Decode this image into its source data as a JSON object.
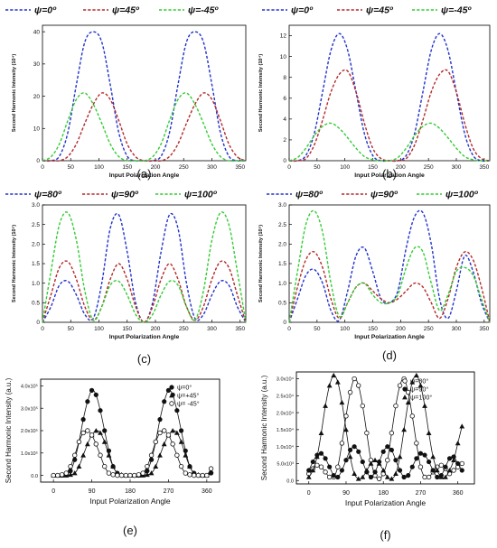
{
  "chart_data": [
    {
      "panel": "(a)",
      "type": "line",
      "legend": [
        "ψ=0º",
        "ψ=45º",
        "ψ=-45º"
      ],
      "xlabel": "Input Polarization Angle",
      "ylabel": "Second Harmonic Intensity (10⁴)",
      "xlim": [
        0,
        360
      ],
      "ylim": [
        0,
        42
      ],
      "xticks": [
        "0",
        "50",
        "100",
        "150",
        "200",
        "250",
        "300",
        "350"
      ],
      "yticks": [
        "0",
        "10",
        "20",
        "30",
        "40"
      ],
      "x": [
        0,
        15,
        30,
        45,
        60,
        75,
        90,
        105,
        120,
        135,
        150,
        165,
        180,
        195,
        210,
        225,
        240,
        255,
        270,
        285,
        300,
        315,
        330,
        345,
        360
      ],
      "series": [
        {
          "name": "ψ=0º",
          "color": "#2233cc",
          "values": [
            0,
            0,
            1.4,
            8.8,
            23.6,
            36.8,
            40,
            36.8,
            23.6,
            8.8,
            1.4,
            0,
            0,
            0,
            1.4,
            8.8,
            23.6,
            36.8,
            40,
            36.8,
            23.6,
            8.8,
            1.4,
            0,
            0
          ]
        },
        {
          "name": "ψ=45º",
          "color": "#b22a2a",
          "values": [
            0,
            0,
            0,
            1.3,
            5.2,
            11.6,
            17.5,
            21,
            19,
            12.5,
            5.2,
            1.2,
            0,
            0,
            0,
            1.3,
            5.2,
            11.6,
            17.5,
            21,
            19,
            12.5,
            5.2,
            1.2,
            0
          ]
        },
        {
          "name": "ψ=-45º",
          "color": "#33cc33",
          "values": [
            0,
            1.2,
            5.2,
            12.5,
            19,
            21,
            17.5,
            11.6,
            5.2,
            1.3,
            0,
            0,
            0,
            1.2,
            5.2,
            12.5,
            19,
            21,
            17.5,
            11.6,
            5.2,
            1.3,
            0,
            0,
            0
          ]
        }
      ]
    },
    {
      "panel": "(b)",
      "type": "line",
      "legend": [
        "ψ=0º",
        "ψ=45º",
        "ψ=-45º"
      ],
      "xlabel": "Input Polarization Angle",
      "ylabel": "Second Harmonic Intensity (10⁴)",
      "xlim": [
        0,
        360
      ],
      "ylim": [
        0,
        13
      ],
      "xticks": [
        "0",
        "50",
        "100",
        "150",
        "200",
        "250",
        "300",
        "350"
      ],
      "yticks": [
        "0",
        "2",
        "4",
        "6",
        "8",
        "10",
        "12"
      ],
      "x": [
        0,
        15,
        30,
        45,
        60,
        75,
        90,
        105,
        120,
        135,
        150,
        165,
        180,
        195,
        210,
        225,
        240,
        255,
        270,
        285,
        300,
        315,
        330,
        345,
        360
      ],
      "series": [
        {
          "name": "ψ=0º",
          "color": "#2233cc",
          "values": [
            0,
            0,
            0.5,
            2.6,
            6.6,
            10.6,
            12.2,
            10.6,
            6.6,
            2.6,
            0.5,
            0,
            0,
            0,
            0.5,
            2.6,
            6.6,
            10.6,
            12.2,
            10.6,
            6.6,
            2.6,
            0.5,
            0,
            0
          ]
        },
        {
          "name": "ψ=45º",
          "color": "#b22a2a",
          "values": [
            0,
            0,
            0.2,
            1.5,
            3.9,
            6.6,
            8.3,
            8.6,
            6.6,
            3.6,
            1.2,
            0.2,
            0,
            0,
            0.2,
            1.5,
            3.9,
            6.6,
            8.3,
            8.6,
            6.6,
            3.6,
            1.2,
            0.2,
            0
          ]
        },
        {
          "name": "ψ=-45º",
          "color": "#33cc33",
          "values": [
            0,
            0.3,
            1.2,
            2.4,
            3.3,
            3.6,
            3.1,
            2.2,
            1.2,
            0.4,
            0.1,
            0,
            0,
            0.3,
            1.2,
            2.4,
            3.3,
            3.6,
            3.1,
            2.2,
            1.2,
            0.4,
            0.1,
            0,
            0
          ]
        }
      ]
    },
    {
      "panel": "(c)",
      "type": "line",
      "legend": [
        "ψ=80º",
        "ψ=90º",
        "ψ=100º"
      ],
      "xlabel": "Input Polarization Angle",
      "ylabel": "Second Harmonic Intensity (10⁵)",
      "xlim": [
        0,
        360
      ],
      "ylim": [
        0,
        3.0
      ],
      "xticks": [
        "0",
        "50",
        "100",
        "150",
        "200",
        "250",
        "300",
        "350"
      ],
      "yticks": [
        "0",
        "0.5",
        "1.0",
        "1.5",
        "2.0",
        "2.5",
        "3.0"
      ],
      "x": [
        0,
        15,
        30,
        45,
        60,
        75,
        90,
        105,
        120,
        135,
        150,
        165,
        180,
        195,
        210,
        225,
        240,
        255,
        270,
        285,
        300,
        315,
        330,
        345,
        360
      ],
      "series": [
        {
          "name": "ψ=80º",
          "color": "#2233cc",
          "values": [
            0,
            0.4,
            0.95,
            1.05,
            0.7,
            0.2,
            0.1,
            1.0,
            2.4,
            2.75,
            1.8,
            0.5,
            0,
            0.5,
            1.8,
            2.75,
            2.4,
            1.0,
            0.1,
            0.2,
            0.7,
            1.05,
            0.95,
            0.4,
            0
          ]
        },
        {
          "name": "ψ=90º",
          "color": "#b22a2a",
          "values": [
            0,
            0.7,
            1.4,
            1.55,
            1.1,
            0.4,
            0.05,
            0.4,
            1.1,
            1.5,
            1.1,
            0.4,
            0,
            0.4,
            1.1,
            1.5,
            1.1,
            0.4,
            0.05,
            0.4,
            1.1,
            1.55,
            1.4,
            0.7,
            0
          ]
        },
        {
          "name": "ψ=100º",
          "color": "#33cc33",
          "values": [
            0,
            1.3,
            2.5,
            2.8,
            2.1,
            0.8,
            0.05,
            0.4,
            0.95,
            1.05,
            0.7,
            0.2,
            0,
            0.2,
            0.7,
            1.05,
            0.95,
            0.4,
            0.05,
            0.8,
            2.1,
            2.8,
            2.5,
            1.3,
            0
          ]
        }
      ]
    },
    {
      "panel": "(d)",
      "type": "line",
      "legend": [
        "ψ=80º",
        "ψ=90º",
        "ψ=100º"
      ],
      "xlabel": "Input Polarization Angle",
      "ylabel": "Second Harmonic Intensity (10⁵)",
      "xlim": [
        0,
        360
      ],
      "ylim": [
        0,
        3.0
      ],
      "xticks": [
        "0",
        "50",
        "100",
        "150",
        "200",
        "250",
        "300",
        "350"
      ],
      "yticks": [
        "0",
        "0.5",
        "1.0",
        "1.5",
        "2.0",
        "2.5",
        "3.0"
      ],
      "x": [
        0,
        15,
        30,
        45,
        60,
        75,
        90,
        105,
        120,
        135,
        150,
        165,
        180,
        195,
        210,
        225,
        240,
        255,
        270,
        285,
        300,
        315,
        330,
        345,
        360
      ],
      "series": [
        {
          "name": "ψ=80º",
          "color": "#2233cc",
          "values": [
            0,
            0.6,
            1.2,
            1.35,
            1.0,
            0.3,
            0.05,
            0.8,
            1.7,
            1.9,
            1.3,
            0.6,
            0.5,
            0.8,
            1.9,
            2.7,
            2.8,
            2.0,
            0.6,
            0.1,
            0.8,
            1.7,
            1.3,
            0.5,
            0
          ]
        },
        {
          "name": "ψ=90º",
          "color": "#b22a2a",
          "values": [
            0,
            0.9,
            1.6,
            1.8,
            1.4,
            0.6,
            0.1,
            0.5,
            0.9,
            1.0,
            0.8,
            0.6,
            0.5,
            0.6,
            0.8,
            1.0,
            0.9,
            0.5,
            0.1,
            0.6,
            1.4,
            1.8,
            1.6,
            0.9,
            0
          ]
        },
        {
          "name": "ψ=100º",
          "color": "#33cc33",
          "values": [
            0,
            1.3,
            2.5,
            2.85,
            2.3,
            1.0,
            0.15,
            0.5,
            0.9,
            1.0,
            0.7,
            0.5,
            0.5,
            0.7,
            1.4,
            1.9,
            1.8,
            1.0,
            0.3,
            0.7,
            1.3,
            1.4,
            1.2,
            0.6,
            0
          ]
        }
      ]
    },
    {
      "panel": "(e)",
      "type": "scatter",
      "legend": [
        "ψ=0°",
        "ψ=+45°",
        "ψ= -45°"
      ],
      "xlabel": "Input Polarization Angle",
      "ylabel": "Second Harmonic Intensity (a.u.)",
      "xlim": [
        -30,
        390
      ],
      "ylim": [
        -0.3,
        4.3
      ],
      "xticks": [
        "0",
        "90",
        "180",
        "270",
        "360"
      ],
      "yticks": [
        "0.0",
        "1.0x10⁵",
        "2.0x10⁵",
        "3.0x10⁵",
        "4.0x10⁵"
      ],
      "x": [
        0,
        10,
        20,
        30,
        40,
        50,
        60,
        70,
        80,
        90,
        100,
        110,
        120,
        130,
        140,
        150,
        160,
        170,
        180,
        190,
        200,
        210,
        220,
        230,
        240,
        250,
        260,
        270,
        280,
        290,
        300,
        310,
        320,
        330,
        340,
        350,
        360,
        370
      ],
      "series": [
        {
          "name": "ψ=0°",
          "marker": "filled-circle",
          "values": [
            0,
            0,
            0,
            0.03,
            0.2,
            0.7,
            1.5,
            2.5,
            3.3,
            3.8,
            3.6,
            2.9,
            2.0,
            1.1,
            0.4,
            0.1,
            0,
            0,
            0,
            0,
            0,
            0.03,
            0.2,
            0.7,
            1.5,
            2.5,
            3.3,
            3.8,
            3.6,
            2.9,
            2.0,
            1.1,
            0.4,
            0.1,
            0,
            0,
            0,
            0.1
          ]
        },
        {
          "name": "ψ=+45°",
          "marker": "filled-triangle",
          "values": [
            0,
            0,
            0,
            0,
            0.03,
            0.1,
            0.4,
            0.9,
            1.4,
            1.8,
            2.0,
            1.9,
            1.5,
            0.9,
            0.4,
            0.1,
            0.03,
            0,
            0,
            0,
            0,
            0,
            0.03,
            0.1,
            0.4,
            0.9,
            1.4,
            1.8,
            2.0,
            1.9,
            1.5,
            0.9,
            0.4,
            0.1,
            0.03,
            0,
            0,
            0.2
          ]
        },
        {
          "name": "ψ= -45°",
          "marker": "open-circle",
          "values": [
            0,
            0,
            0.03,
            0.1,
            0.4,
            0.9,
            1.5,
            1.9,
            2.0,
            1.8,
            1.4,
            0.9,
            0.4,
            0.1,
            0.03,
            0,
            0,
            0,
            0,
            0,
            0.03,
            0.1,
            0.4,
            0.9,
            1.5,
            1.9,
            2.0,
            1.8,
            1.4,
            0.9,
            0.4,
            0.1,
            0.03,
            0,
            0,
            0,
            0,
            0.3
          ]
        }
      ]
    },
    {
      "panel": "(f)",
      "type": "scatter",
      "legend": [
        "ψ=80°",
        "ψ=90°",
        "ψ=100°"
      ],
      "xlabel": "Input Polarization Angle",
      "ylabel": "Second Harmonic Intensity (a.u.)",
      "xlim": [
        -30,
        400
      ],
      "ylim": [
        -0.1,
        3.2
      ],
      "xticks": [
        "0",
        "90",
        "180",
        "270",
        "360"
      ],
      "yticks": [
        "0.0",
        "5.0x10³",
        "1.0x10⁴",
        "1.5x10⁴",
        "2.0x10⁴",
        "2.5x10⁴",
        "3.0x10⁴"
      ],
      "x": [
        0,
        10,
        20,
        30,
        40,
        50,
        60,
        70,
        80,
        90,
        100,
        110,
        120,
        130,
        140,
        150,
        160,
        170,
        180,
        190,
        200,
        210,
        220,
        230,
        240,
        250,
        260,
        270,
        280,
        290,
        300,
        310,
        320,
        330,
        340,
        350,
        360,
        370
      ],
      "series": [
        {
          "name": "ψ=80°",
          "marker": "open-circle",
          "values": [
            0.2,
            0.35,
            0.45,
            0.4,
            0.25,
            0.1,
            0.1,
            0.4,
            1.1,
            1.9,
            2.6,
            3.0,
            2.8,
            2.2,
            1.4,
            0.6,
            0.15,
            0.05,
            0.2,
            0.6,
            1.4,
            2.2,
            2.8,
            3.0,
            2.6,
            1.9,
            1.1,
            0.4,
            0.1,
            0.1,
            0.25,
            0.4,
            0.45,
            0.35,
            0.2,
            0.3,
            0.4,
            0.5
          ]
        },
        {
          "name": "ψ=90°",
          "marker": "filled-circle",
          "values": [
            0.3,
            0.55,
            0.75,
            0.8,
            0.65,
            0.4,
            0.15,
            0.1,
            0.3,
            0.6,
            0.9,
            1.0,
            0.85,
            0.55,
            0.25,
            0.1,
            0.25,
            0.55,
            0.85,
            1.0,
            0.9,
            0.6,
            0.3,
            0.1,
            0.15,
            0.4,
            0.65,
            0.8,
            0.75,
            0.55,
            0.3,
            0.1,
            0.15,
            0.4,
            0.65,
            0.7,
            0.5,
            0.3
          ]
        },
        {
          "name": "ψ=100°",
          "marker": "filled-triangle",
          "values": [
            0.1,
            0.3,
            0.7,
            1.4,
            2.2,
            2.8,
            3.1,
            2.9,
            2.3,
            1.5,
            0.7,
            0.2,
            0.05,
            0.1,
            0.3,
            0.5,
            0.6,
            0.5,
            0.3,
            0.1,
            0.05,
            0.2,
            0.7,
            1.5,
            2.3,
            2.9,
            3.1,
            2.8,
            2.2,
            1.4,
            0.7,
            0.3,
            0.1,
            0.1,
            0.3,
            0.6,
            1.1,
            1.6
          ]
        }
      ]
    }
  ]
}
